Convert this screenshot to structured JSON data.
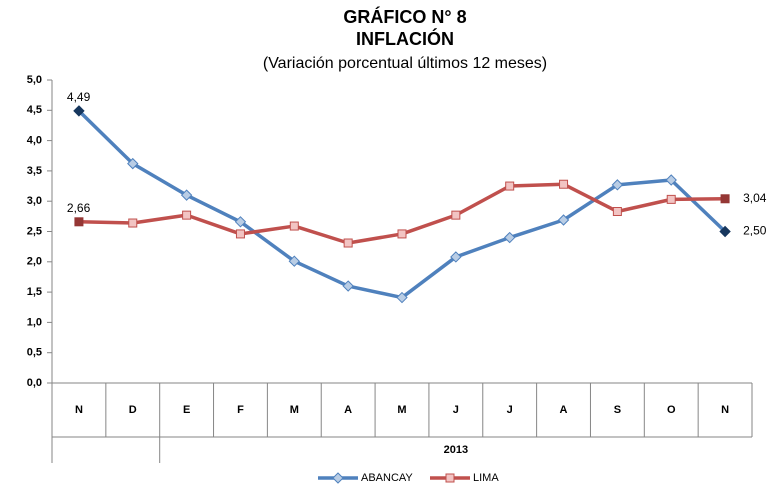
{
  "chart_data": {
    "type": "line",
    "title": "GRÁFICO N° 8",
    "subtitle": "INFLACIÓN",
    "description": "(Variación porcentual últimos 12 meses)",
    "categories": [
      "N",
      "D",
      "E",
      "F",
      "M",
      "A",
      "M",
      "J",
      "J",
      "A",
      "S",
      "O",
      "N"
    ],
    "x_group_label": "2013",
    "series": [
      {
        "name": "ABANCAY",
        "color": "#4f81bd",
        "marker": "diamond",
        "values": [
          4.49,
          3.62,
          3.1,
          2.66,
          2.01,
          1.6,
          1.41,
          2.08,
          2.4,
          2.69,
          3.27,
          3.35,
          2.5
        ],
        "value_labels": [
          "4,49",
          null,
          null,
          null,
          null,
          null,
          null,
          null,
          null,
          null,
          null,
          null,
          "2,50"
        ]
      },
      {
        "name": "LIMA",
        "color": "#c0504d",
        "marker": "square",
        "values": [
          2.66,
          2.64,
          2.77,
          2.46,
          2.59,
          2.31,
          2.46,
          2.77,
          3.25,
          3.28,
          2.83,
          3.03,
          3.04
        ],
        "value_labels": [
          "2,66",
          null,
          null,
          null,
          null,
          null,
          null,
          null,
          null,
          null,
          null,
          null,
          "3,04"
        ]
      }
    ],
    "ylim": [
      0,
      5
    ],
    "yticks": [
      {
        "value": 0,
        "label": "0,0"
      },
      {
        "value": 0.5,
        "label": "0,5"
      },
      {
        "value": 1,
        "label": "1,0"
      },
      {
        "value": 1.5,
        "label": "1,5"
      },
      {
        "value": 2,
        "label": "2,0"
      },
      {
        "value": 2.5,
        "label": "2,5"
      },
      {
        "value": 3,
        "label": "3,0"
      },
      {
        "value": 3.5,
        "label": "3,5"
      },
      {
        "value": 4,
        "label": "4,0"
      },
      {
        "value": 4.5,
        "label": "4,5"
      },
      {
        "value": 5,
        "label": "5,0"
      }
    ],
    "grid": false,
    "legend": "bottom"
  }
}
